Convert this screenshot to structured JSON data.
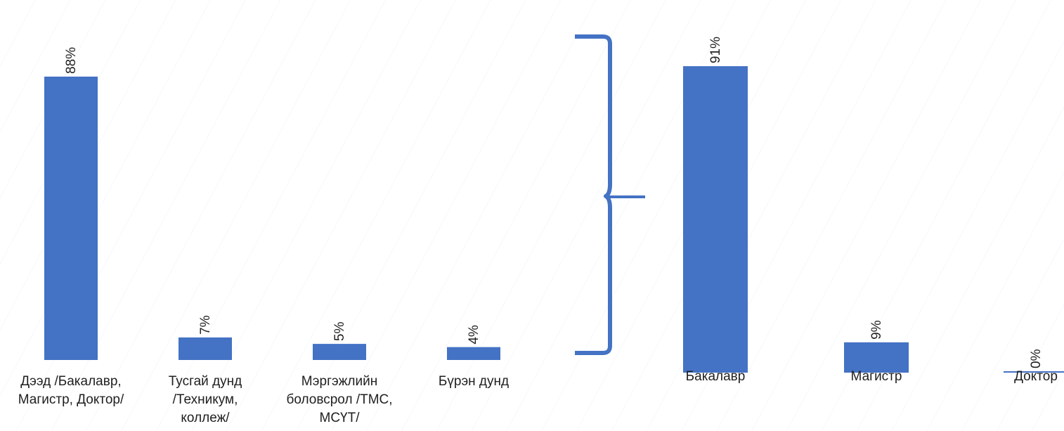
{
  "colors": {
    "bar": "#4472c4",
    "brace": "#4472c4",
    "text": "#1f1f1f",
    "background": "#ffffff"
  },
  "chart_data": [
    {
      "type": "bar",
      "categories": [
        "Дээд /Бакалавр, Магистр, Доктор/",
        "Тусгай дунд /Техникум, коллеж/",
        "Мэргэжлийн боловсрол /ТМС, МСҮТ/",
        "Бүрэн дунд"
      ],
      "values": [
        88,
        7,
        5,
        4
      ],
      "data_labels": [
        "88%",
        "7%",
        "5%",
        "4%"
      ],
      "ylim": [
        0,
        100
      ],
      "grid": false,
      "legend": "none",
      "title": "",
      "xlabel": "",
      "ylabel": ""
    },
    {
      "type": "bar",
      "categories": [
        "Бакалавр",
        "Магистр",
        "Доктор"
      ],
      "values": [
        91,
        9,
        0
      ],
      "data_labels": [
        "91%",
        "9%",
        "0%"
      ],
      "ylim": [
        0,
        100
      ],
      "grid": false,
      "legend": "none",
      "title": "",
      "xlabel": "",
      "ylabel": ""
    }
  ],
  "left_labels": [
    [
      "Дээд /Бакалавр,",
      "Магистр, Доктор/"
    ],
    [
      "Тусгай дунд",
      "/Техникум,",
      "коллеж/"
    ],
    [
      "Мэргэжлийн",
      "боловсрол /ТМС,",
      "МСҮТ/"
    ],
    [
      "Бүрэн дунд"
    ]
  ],
  "right_labels": [
    [
      "Бакалавр"
    ],
    [
      "Магистр"
    ],
    [
      "Доктор"
    ]
  ]
}
